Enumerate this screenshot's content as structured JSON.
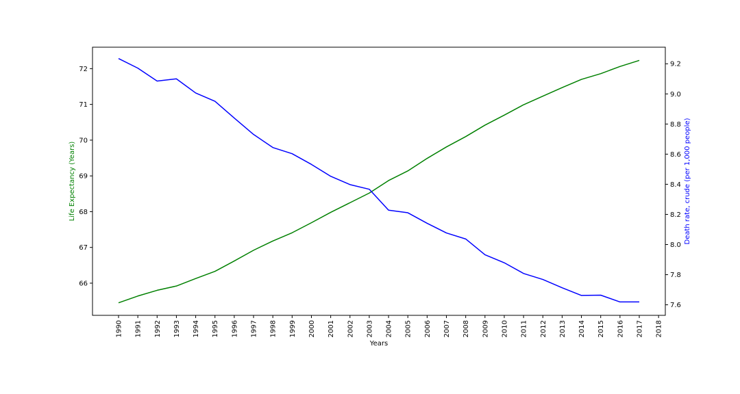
{
  "chart_data": {
    "type": "line",
    "xlabel": "Years",
    "x": [
      1990,
      1991,
      1992,
      1993,
      1994,
      1995,
      1996,
      1997,
      1998,
      1999,
      2000,
      2001,
      2002,
      2003,
      2004,
      2005,
      2006,
      2007,
      2008,
      2009,
      2010,
      2011,
      2012,
      2013,
      2014,
      2015,
      2016,
      2017
    ],
    "x_ticks": [
      "1990",
      "1991",
      "1992",
      "1993",
      "1994",
      "1995",
      "1996",
      "1997",
      "1998",
      "1999",
      "2000",
      "2001",
      "2002",
      "2003",
      "2004",
      "2005",
      "2006",
      "2007",
      "2008",
      "2009",
      "2010",
      "2011",
      "2012",
      "2013",
      "2014",
      "2015",
      "2016",
      "2017",
      "2018"
    ],
    "xlim": [
      1988.65,
      2018.35
    ],
    "axes": {
      "left": {
        "label": "Life Expectancy (Years)",
        "color": "#008000",
        "ylim": [
          65.1,
          72.6
        ],
        "ticks": [
          66,
          67,
          68,
          69,
          70,
          71,
          72
        ],
        "tick_labels": [
          "66",
          "67",
          "68",
          "69",
          "70",
          "71",
          "72"
        ]
      },
      "right": {
        "label": "Death rate, crude (per 1,000 people)",
        "color": "#0000ff",
        "ylim": [
          7.53,
          9.31
        ],
        "ticks": [
          7.6,
          7.8,
          8.0,
          8.2,
          8.4,
          8.6,
          8.8,
          9.0,
          9.2
        ],
        "tick_labels": [
          "7.6",
          "7.8",
          "8.0",
          "8.2",
          "8.4",
          "8.6",
          "8.8",
          "9.0",
          "9.2"
        ]
      }
    },
    "series": [
      {
        "axis": "left",
        "color": "#008000",
        "values": [
          65.45,
          65.64,
          65.8,
          65.92,
          66.13,
          66.33,
          66.62,
          66.92,
          67.18,
          67.41,
          67.69,
          67.98,
          68.25,
          68.52,
          68.87,
          69.14,
          69.49,
          69.81,
          70.1,
          70.42,
          70.7,
          70.99,
          71.23,
          71.47,
          71.7,
          71.86,
          72.06,
          72.23
        ]
      },
      {
        "axis": "right",
        "color": "#0000ff",
        "values": [
          9.235,
          9.171,
          9.085,
          9.1,
          9.006,
          8.951,
          8.84,
          8.731,
          8.644,
          8.603,
          8.532,
          8.453,
          8.398,
          8.367,
          8.228,
          8.211,
          8.141,
          8.077,
          8.037,
          7.932,
          7.879,
          7.808,
          7.768,
          7.713,
          7.662,
          7.664,
          7.619,
          7.619
        ]
      }
    ]
  }
}
